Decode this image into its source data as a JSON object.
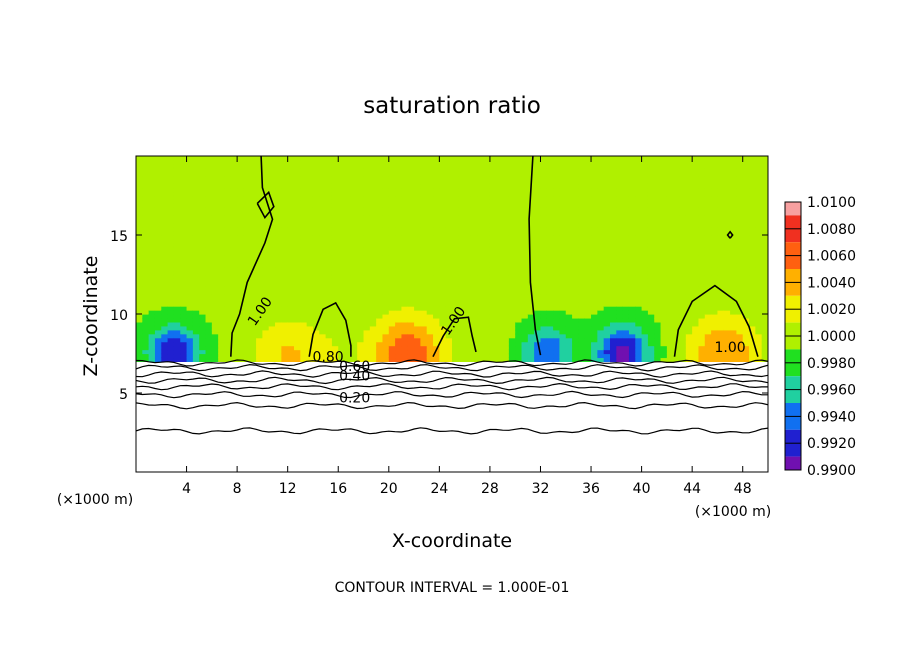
{
  "chart_data": {
    "type": "heatmap",
    "title": "saturation ratio",
    "xlabel": "X-coordinate",
    "ylabel": "Z-coordinate",
    "x_unit": "(×1000 m)",
    "y_unit": "(×1000 m)",
    "xlim": [
      0,
      50
    ],
    "ylim": [
      0,
      20
    ],
    "x_ticks": [
      "4",
      "8",
      "12",
      "16",
      "20",
      "24",
      "28",
      "32",
      "36",
      "40",
      "44",
      "48"
    ],
    "y_ticks": [
      "5",
      "10",
      "15"
    ],
    "footer": "CONTOUR INTERVAL = 1.000E-01",
    "colorbar": {
      "levels": [
        "1.0100",
        "1.0080",
        "1.0060",
        "1.0040",
        "1.0020",
        "1.0000",
        "0.9980",
        "0.9960",
        "0.9940",
        "0.9920",
        "0.9900"
      ],
      "colors": [
        "#f7a0a0",
        "#f03020",
        "#ff6010",
        "#ffb000",
        "#f0f000",
        "#b0f000",
        "#20e020",
        "#20d0a0",
        "#1070f0",
        "#2020d0",
        "#7010b0"
      ]
    },
    "contour_labels": [
      {
        "text": "1.00",
        "x": 10.1,
        "z": 10.0
      },
      {
        "text": "1.00",
        "x": 25.4,
        "z": 9.4
      },
      {
        "text": "1.00",
        "x": 47.0,
        "z": 7.6
      },
      {
        "text": "0.80",
        "x": 15.2,
        "z": 7.0
      },
      {
        "text": "0.60",
        "x": 17.3,
        "z": 6.4
      },
      {
        "text": "0.40",
        "x": 17.3,
        "z": 5.8
      },
      {
        "text": "0.20",
        "x": 17.3,
        "z": 4.4
      }
    ],
    "lower_contour_levels_z": [
      2.6,
      4.2,
      4.9,
      5.4,
      5.8,
      6.2,
      6.6,
      6.9
    ],
    "hotspots": [
      {
        "x": 21.5,
        "z": 7.5,
        "peak": 1.0076
      },
      {
        "x": 46.5,
        "z": 7.5,
        "peak": 1.006
      },
      {
        "x": 11.8,
        "z": 7.4,
        "peak": 1.004
      },
      {
        "x": 15.5,
        "z": 7.5,
        "peak": 1.0015
      },
      {
        "x": 28.0,
        "z": 7.5,
        "peak": 1.001
      }
    ],
    "coldspots": [
      {
        "x": 38.5,
        "z": 7.6,
        "min": 0.991
      },
      {
        "x": 3.0,
        "z": 7.6,
        "min": 0.992
      },
      {
        "x": 32.5,
        "z": 7.6,
        "min": 0.994
      }
    ]
  }
}
